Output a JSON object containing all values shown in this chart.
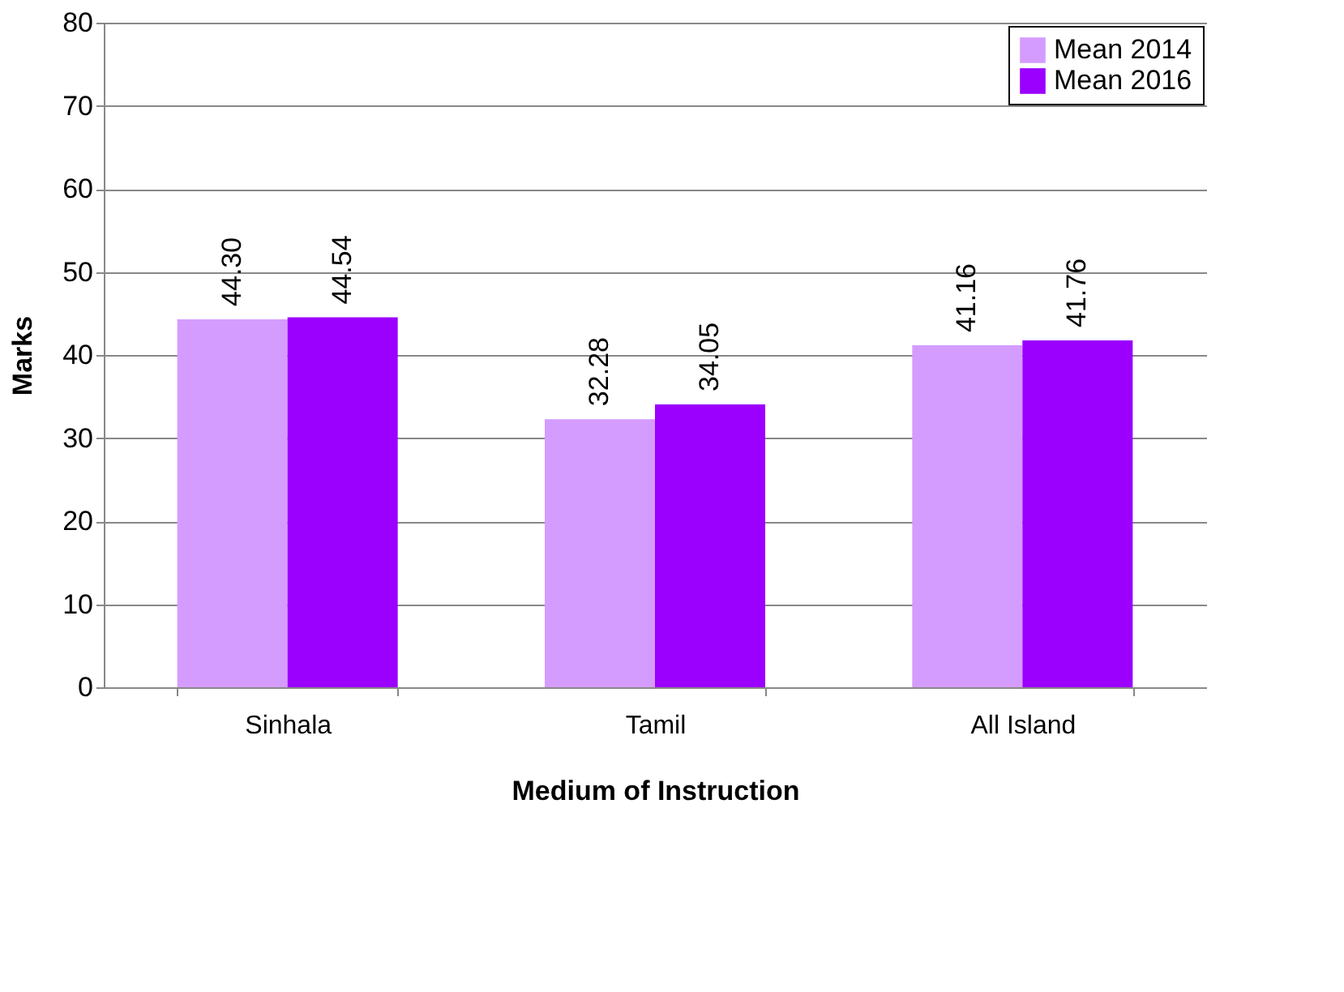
{
  "chart_data": {
    "type": "bar",
    "xlabel": "Medium of Instruction",
    "ylabel": "Marks",
    "categories": [
      "Sinhala",
      "Tamil",
      "All Island"
    ],
    "series": [
      {
        "name": "Mean 2014",
        "color": "#d59cff",
        "values": [
          44.3,
          32.28,
          41.16
        ],
        "value_labels": [
          "44.30",
          "32.28",
          "41.16"
        ]
      },
      {
        "name": "Mean 2016",
        "color": "#9b00ff",
        "values": [
          44.54,
          34.05,
          41.76
        ],
        "value_labels": [
          "44.54",
          "34.05",
          "41.76"
        ]
      }
    ],
    "ylim": [
      0,
      80
    ],
    "yticks": [
      0,
      10,
      20,
      30,
      40,
      50,
      60,
      70,
      80
    ],
    "grid": "y",
    "legend": "top right"
  }
}
